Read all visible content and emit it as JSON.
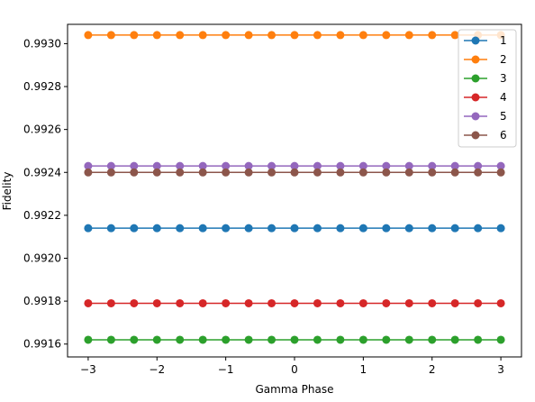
{
  "chart_data": {
    "type": "line",
    "xlabel": "Gamma Phase",
    "ylabel": "Fidelity",
    "xlim": [
      -3.3,
      3.3
    ],
    "ylim": [
      0.99154,
      0.99309
    ],
    "xticks": [
      -3,
      -2,
      -1,
      0,
      1,
      2,
      3
    ],
    "xtick_labels": [
      "−3",
      "−2",
      "−1",
      "0",
      "1",
      "2",
      "3"
    ],
    "yticks": [
      0.9916,
      0.9918,
      0.992,
      0.9922,
      0.9924,
      0.9926,
      0.9928,
      0.993
    ],
    "ytick_labels": [
      "0.9916",
      "0.9918",
      "0.9920",
      "0.9922",
      "0.9924",
      "0.9926",
      "0.9928",
      "0.9930"
    ],
    "grid": false,
    "legend_position": "top-right",
    "x": [
      -3.0,
      -2.6667,
      -2.3333,
      -2.0,
      -1.6667,
      -1.3333,
      -1.0,
      -0.6667,
      -0.3333,
      0.0,
      0.3333,
      0.6667,
      1.0,
      1.3333,
      1.6667,
      2.0,
      2.3333,
      2.6667,
      3.0
    ],
    "series": [
      {
        "name": "1",
        "color": "#1f77b4",
        "values": [
          0.99214,
          0.99214,
          0.99214,
          0.99214,
          0.99214,
          0.99214,
          0.99214,
          0.99214,
          0.99214,
          0.99214,
          0.99214,
          0.99214,
          0.99214,
          0.99214,
          0.99214,
          0.99214,
          0.99214,
          0.99214,
          0.99214
        ]
      },
      {
        "name": "2",
        "color": "#ff7f0e",
        "values": [
          0.99304,
          0.99304,
          0.99304,
          0.99304,
          0.99304,
          0.99304,
          0.99304,
          0.99304,
          0.99304,
          0.99304,
          0.99304,
          0.99304,
          0.99304,
          0.99304,
          0.99304,
          0.99304,
          0.99304,
          0.99304,
          0.99304
        ]
      },
      {
        "name": "3",
        "color": "#2ca02c",
        "values": [
          0.99162,
          0.99162,
          0.99162,
          0.99162,
          0.99162,
          0.99162,
          0.99162,
          0.99162,
          0.99162,
          0.99162,
          0.99162,
          0.99162,
          0.99162,
          0.99162,
          0.99162,
          0.99162,
          0.99162,
          0.99162,
          0.99162
        ]
      },
      {
        "name": "4",
        "color": "#d62728",
        "values": [
          0.99179,
          0.99179,
          0.99179,
          0.99179,
          0.99179,
          0.99179,
          0.99179,
          0.99179,
          0.99179,
          0.99179,
          0.99179,
          0.99179,
          0.99179,
          0.99179,
          0.99179,
          0.99179,
          0.99179,
          0.99179,
          0.99179
        ]
      },
      {
        "name": "5",
        "color": "#9467bd",
        "values": [
          0.99243,
          0.99243,
          0.99243,
          0.99243,
          0.99243,
          0.99243,
          0.99243,
          0.99243,
          0.99243,
          0.99243,
          0.99243,
          0.99243,
          0.99243,
          0.99243,
          0.99243,
          0.99243,
          0.99243,
          0.99243,
          0.99243
        ]
      },
      {
        "name": "6",
        "color": "#8c564b",
        "values": [
          0.9924,
          0.9924,
          0.9924,
          0.9924,
          0.9924,
          0.9924,
          0.9924,
          0.9924,
          0.9924,
          0.9924,
          0.9924,
          0.9924,
          0.9924,
          0.9924,
          0.9924,
          0.9924,
          0.9924,
          0.9924,
          0.9924
        ]
      }
    ]
  }
}
